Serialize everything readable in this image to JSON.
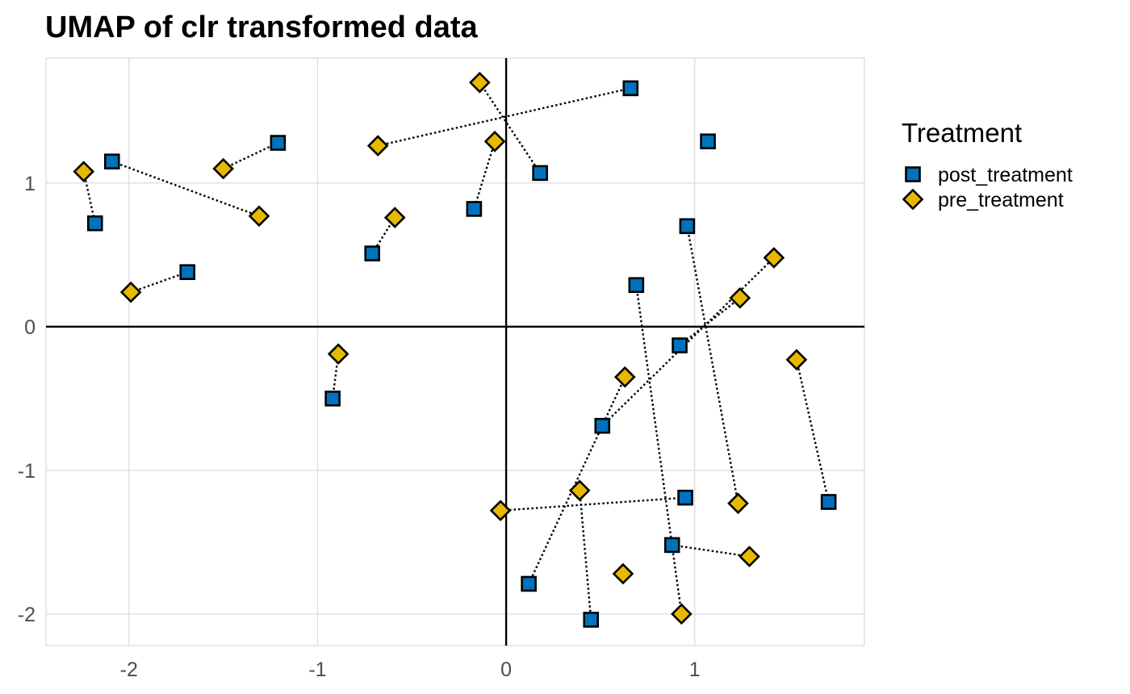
{
  "chart_data": {
    "type": "scatter",
    "title": "UMAP of clr transformed data",
    "xlabel": "",
    "ylabel": "",
    "xlim": [
      -2.44,
      1.9
    ],
    "ylim": [
      -2.22,
      1.87
    ],
    "x_ticks": [
      -2,
      -1,
      0,
      1
    ],
    "y_ticks": [
      -2,
      -1,
      0,
      1
    ],
    "x_tick_labels": [
      "-2",
      "-1",
      "0",
      "1"
    ],
    "y_tick_labels": [
      "-2",
      "-1",
      "0",
      "1"
    ],
    "grid": true,
    "reference_lines": {
      "x": 0,
      "y": 0
    },
    "legend": {
      "title": "Treatment",
      "position": "right"
    },
    "series": [
      {
        "name": "post_treatment",
        "marker": "square",
        "color": "#0072BD",
        "points": [
          [
            -2.09,
            1.15
          ],
          [
            -2.18,
            0.72
          ],
          [
            -1.21,
            1.28
          ],
          [
            -1.69,
            0.38
          ],
          [
            -0.71,
            0.51
          ],
          [
            -0.17,
            0.82
          ],
          [
            0.18,
            1.07
          ],
          [
            0.66,
            1.66
          ],
          [
            1.07,
            1.29
          ],
          [
            0.96,
            0.7
          ],
          [
            0.69,
            0.29
          ],
          [
            0.92,
            -0.13
          ],
          [
            0.51,
            -0.69
          ],
          [
            -0.92,
            -0.5
          ],
          [
            0.95,
            -1.19
          ],
          [
            1.71,
            -1.22
          ],
          [
            0.88,
            -1.52
          ],
          [
            0.12,
            -1.79
          ],
          [
            0.45,
            -2.04
          ]
        ]
      },
      {
        "name": "pre_treatment",
        "marker": "diamond",
        "color": "#E7B800",
        "points": [
          [
            -2.24,
            1.08
          ],
          [
            -1.5,
            1.1
          ],
          [
            -1.31,
            0.77
          ],
          [
            -1.99,
            0.24
          ],
          [
            -0.68,
            1.26
          ],
          [
            -0.14,
            1.7
          ],
          [
            -0.06,
            1.29
          ],
          [
            -0.59,
            0.76
          ],
          [
            1.42,
            0.48
          ],
          [
            1.24,
            0.2
          ],
          [
            1.54,
            -0.23
          ],
          [
            0.63,
            -0.35
          ],
          [
            -0.89,
            -0.19
          ],
          [
            0.39,
            -1.14
          ],
          [
            -0.03,
            -1.28
          ],
          [
            1.23,
            -1.23
          ],
          [
            1.29,
            -1.6
          ],
          [
            0.62,
            -1.72
          ],
          [
            0.93,
            -2.0
          ]
        ]
      }
    ],
    "connectors": [
      [
        [
          -2.09,
          1.15
        ],
        [
          -1.31,
          0.77
        ]
      ],
      [
        [
          -2.24,
          1.08
        ],
        [
          -2.18,
          0.72
        ]
      ],
      [
        [
          -1.5,
          1.1
        ],
        [
          -1.21,
          1.28
        ]
      ],
      [
        [
          -1.99,
          0.24
        ],
        [
          -1.69,
          0.38
        ]
      ],
      [
        [
          -0.68,
          1.26
        ],
        [
          0.66,
          1.66
        ]
      ],
      [
        [
          -0.14,
          1.7
        ],
        [
          0.18,
          1.07
        ]
      ],
      [
        [
          -0.06,
          1.29
        ],
        [
          -0.17,
          0.82
        ]
      ],
      [
        [
          -0.71,
          0.51
        ],
        [
          -0.59,
          0.76
        ]
      ],
      [
        [
          -0.92,
          -0.5
        ],
        [
          -0.89,
          -0.19
        ]
      ],
      [
        [
          0.96,
          0.7
        ],
        [
          1.23,
          -1.23
        ]
      ],
      [
        [
          0.69,
          0.29
        ],
        [
          0.93,
          -2.0
        ]
      ],
      [
        [
          0.51,
          -0.69
        ],
        [
          1.42,
          0.48
        ]
      ],
      [
        [
          0.92,
          -0.13
        ],
        [
          1.24,
          0.2
        ]
      ],
      [
        [
          1.54,
          -0.23
        ],
        [
          1.71,
          -1.22
        ]
      ],
      [
        [
          0.63,
          -0.35
        ],
        [
          0.12,
          -1.79
        ]
      ],
      [
        [
          0.39,
          -1.14
        ],
        [
          0.45,
          -2.04
        ]
      ],
      [
        [
          -0.03,
          -1.28
        ],
        [
          0.95,
          -1.19
        ]
      ],
      [
        [
          0.88,
          -1.52
        ],
        [
          1.29,
          -1.6
        ]
      ]
    ]
  }
}
